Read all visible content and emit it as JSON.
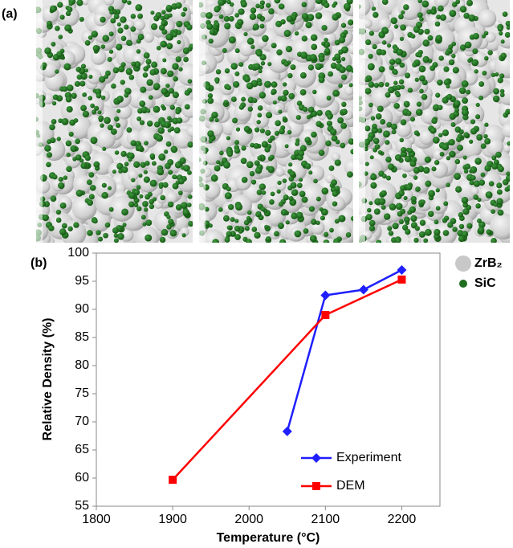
{
  "panel_labels": {
    "a": "(a)",
    "b": "(b)"
  },
  "particle_legend": [
    {
      "name": "ZrB₂",
      "color": "#c8c8c8"
    },
    {
      "name": "SiC",
      "color": "#1f6e1f"
    }
  ],
  "chart_data": {
    "type": "line",
    "x_label": "Temperature (°C)",
    "y_label": "Relative Density (%)",
    "xlim": [
      1800,
      2250
    ],
    "xticks": [
      1800,
      1900,
      2000,
      2100,
      2200
    ],
    "ylim": [
      55,
      100
    ],
    "yticks": [
      55,
      60,
      65,
      70,
      75,
      80,
      85,
      90,
      95,
      100
    ],
    "legend": "lower-right",
    "series": [
      {
        "name": "Experiment",
        "color": "#1f1fff",
        "marker": "diamond",
        "x": [
          2050,
          2100,
          2150,
          2200
        ],
        "values": [
          68.3,
          92.5,
          93.5,
          97
        ]
      },
      {
        "name": "DEM",
        "color": "#ff0000",
        "marker": "square",
        "x": [
          1900,
          2100,
          2200
        ],
        "values": [
          59.7,
          89,
          95.3
        ]
      }
    ]
  }
}
